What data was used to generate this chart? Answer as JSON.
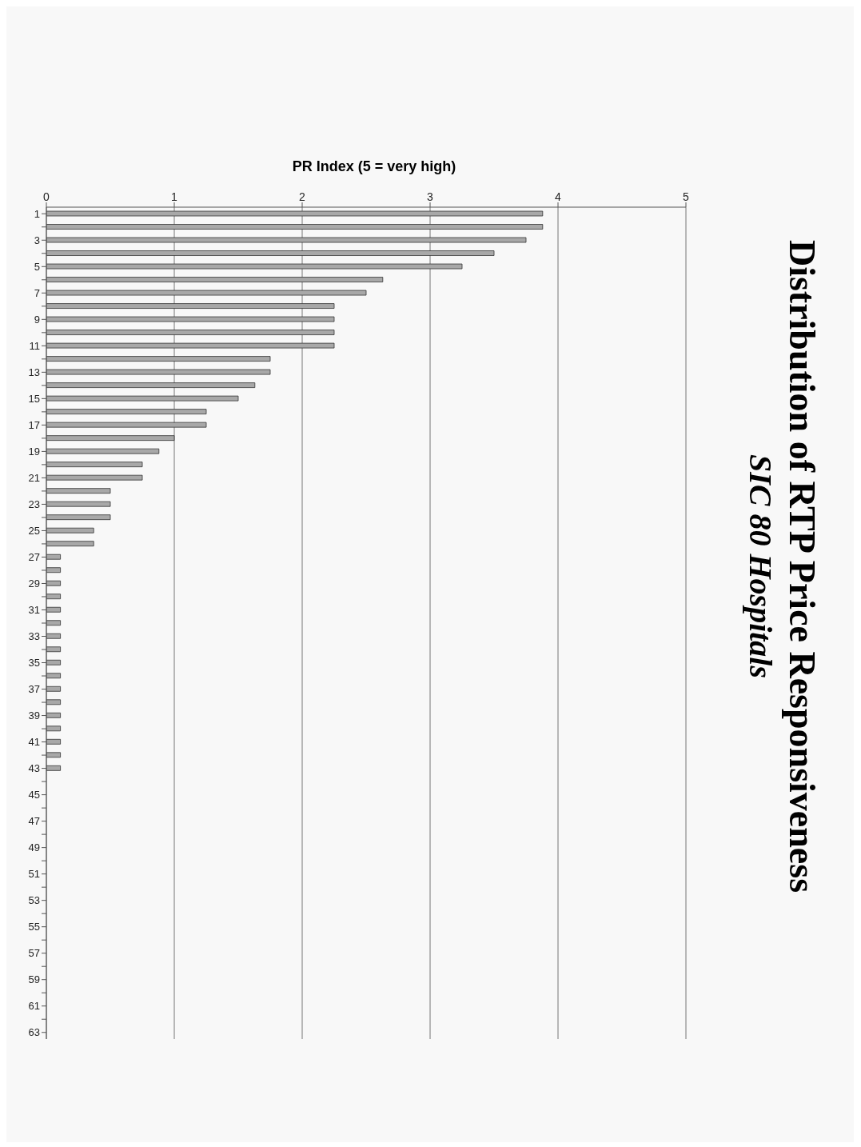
{
  "chart_data": {
    "type": "bar",
    "orientation": "horizontal",
    "title": "Distribution of RTP Price Responsiveness",
    "subtitle": "SIC 80 Hospitals",
    "xlabel": "PR Index (5 = very high)",
    "categories": [
      "1",
      null,
      "3",
      null,
      "5",
      null,
      "7",
      null,
      "9",
      null,
      "11",
      null,
      "13",
      null,
      "15",
      null,
      "17",
      null,
      "19",
      null,
      "21",
      null,
      "23",
      null,
      "25",
      null,
      "27",
      null,
      "29",
      null,
      "31",
      null,
      "33",
      null,
      "35",
      null,
      "37",
      null,
      "39",
      null,
      "41",
      null,
      "43",
      null,
      "45",
      null,
      "47",
      null,
      "49",
      null,
      "51",
      null,
      "53",
      null,
      "55",
      null,
      "57",
      null,
      "59",
      null,
      "61",
      null,
      "63"
    ],
    "values": [
      3.88,
      3.88,
      3.75,
      3.5,
      3.25,
      2.63,
      2.5,
      2.25,
      2.25,
      2.25,
      2.25,
      1.75,
      1.75,
      1.63,
      1.5,
      1.25,
      1.25,
      1.0,
      0.88,
      0.75,
      0.75,
      0.5,
      0.5,
      0.5,
      0.37,
      0.37,
      0.11,
      0.11,
      0.11,
      0.11,
      0.11,
      0.11,
      0.11,
      0.11,
      0.11,
      0.11,
      0.11,
      0.11,
      0.11,
      0.11,
      0.11,
      0.11,
      0.11,
      null,
      null,
      null,
      null,
      null,
      null,
      null,
      null,
      null,
      null,
      null,
      null,
      null,
      null,
      null,
      null,
      null,
      null,
      null,
      null
    ],
    "color": "#a8a8a8",
    "xlim": [
      0,
      5
    ],
    "xticks": [
      0,
      1,
      2,
      3,
      4,
      5
    ],
    "grid": "x",
    "legend": false
  }
}
